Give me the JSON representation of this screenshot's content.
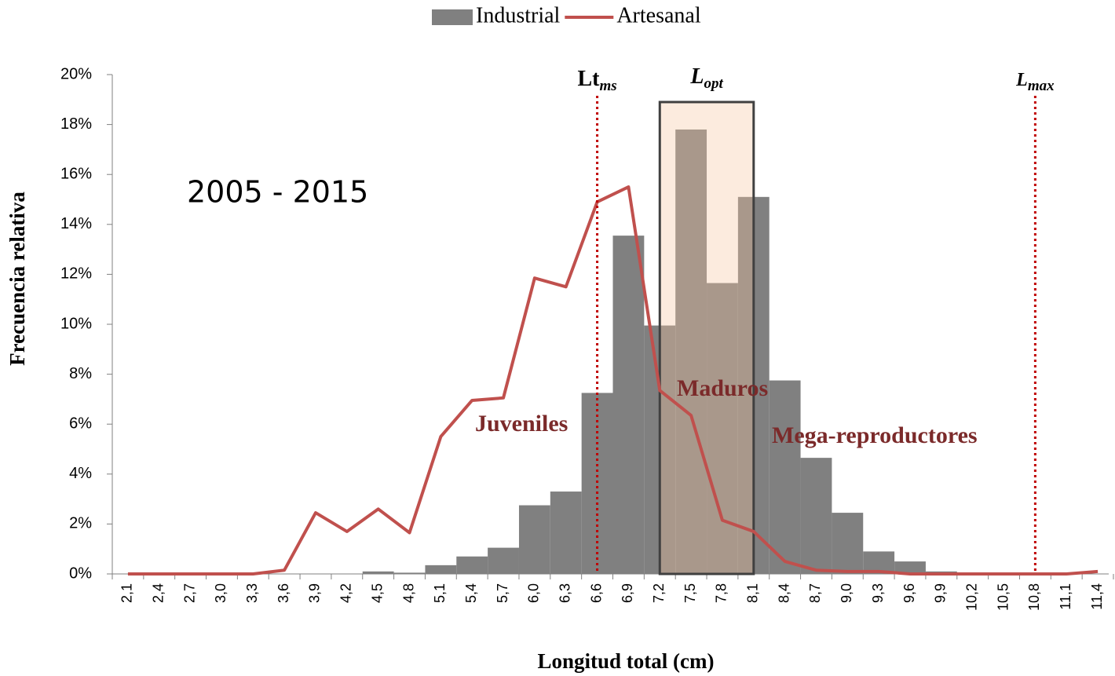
{
  "chart_data": {
    "type": "bar",
    "subtitle": "2005 - 2015",
    "x_label": "Longitud total (cm)",
    "y_label": "Frecuencia relativa",
    "categories": [
      "2,1",
      "2,4",
      "2,7",
      "3,0",
      "3,3",
      "3,6",
      "3,9",
      "4,2",
      "4,5",
      "4,8",
      "5,1",
      "5,4",
      "5,7",
      "6,0",
      "6,3",
      "6,6",
      "6,9",
      "7,2",
      "7,5",
      "7,8",
      "8,1",
      "8,4",
      "8,7",
      "9,0",
      "9,3",
      "9,6",
      "9,9",
      "10,2",
      "10,5",
      "10,8",
      "11,1",
      "11,4"
    ],
    "series": [
      {
        "name": "Industrial",
        "type": "bar",
        "color": "#808080",
        "values": [
          0,
          0,
          0,
          0,
          0,
          0,
          0,
          0,
          0.1,
          0.05,
          0.35,
          0.7,
          1.05,
          2.75,
          3.3,
          7.25,
          13.55,
          9.95,
          17.8,
          11.65,
          15.1,
          7.75,
          4.65,
          2.45,
          0.9,
          0.5,
          0.1,
          0,
          0,
          0,
          0,
          0
        ]
      },
      {
        "name": "Artesanal",
        "type": "line",
        "color": "#c0504d",
        "values": [
          0,
          0,
          0,
          0,
          0,
          0.15,
          2.45,
          1.7,
          2.6,
          1.65,
          5.5,
          6.95,
          7.05,
          11.85,
          11.5,
          14.9,
          15.5,
          7.35,
          6.35,
          2.15,
          1.7,
          0.5,
          0.15,
          0.1,
          0.1,
          0,
          0,
          0,
          0,
          0,
          0,
          0.1
        ]
      }
    ],
    "ylim": [
      0,
      20
    ],
    "yticks": [
      {
        "value": 0,
        "label": "0%"
      },
      {
        "value": 2,
        "label": "2%"
      },
      {
        "value": 4,
        "label": "4%"
      },
      {
        "value": 6,
        "label": "6%"
      },
      {
        "value": 8,
        "label": "8%"
      },
      {
        "value": 10,
        "label": "10%"
      },
      {
        "value": 12,
        "label": "12%"
      },
      {
        "value": 14,
        "label": "14%"
      },
      {
        "value": 16,
        "label": "16%"
      },
      {
        "value": 18,
        "label": "18%"
      },
      {
        "value": 20,
        "label": "20%"
      }
    ],
    "reference_lines": [
      {
        "at": "6,6",
        "label": "Lt",
        "sub": "ms",
        "color": "#c00000"
      },
      {
        "at": "10,8",
        "label": "L",
        "sub": "max",
        "color": "#c00000"
      }
    ],
    "box": {
      "label": "L",
      "sub": "opt",
      "from": "7,2",
      "to": "8,1",
      "top": 18.9
    },
    "annotations": [
      "Juveniles",
      "Maduros",
      "Mega-reproductores"
    ],
    "legend": "top"
  }
}
